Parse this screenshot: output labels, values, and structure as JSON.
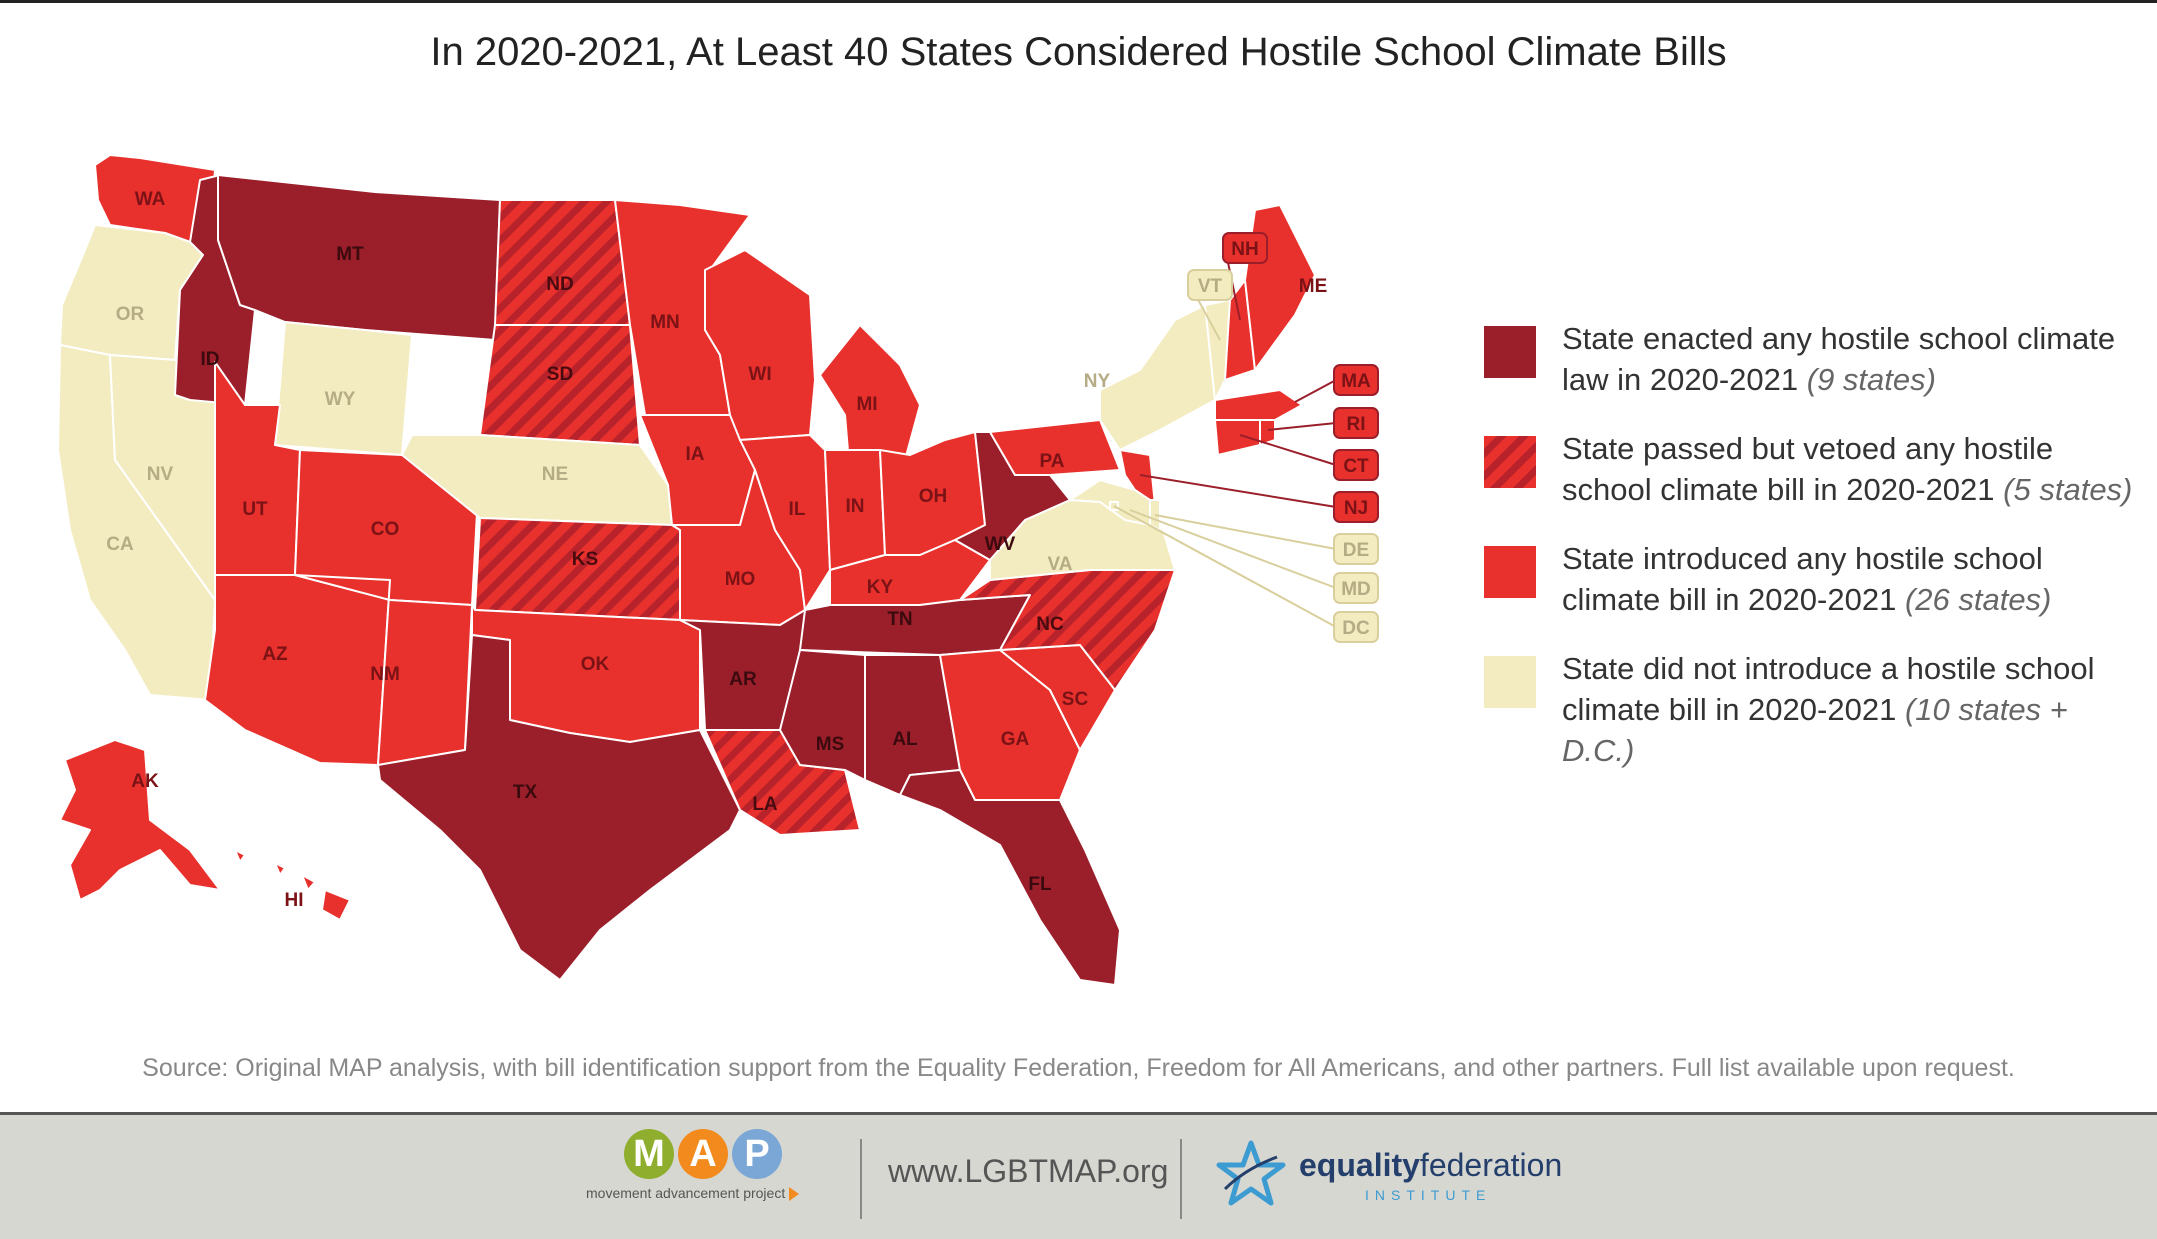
{
  "title": "In 2020-2021, At Least 40 States Considered Hostile School Climate Bills",
  "colors": {
    "enacted": "#9b1f2a",
    "vetoed": "#e8302c",
    "introduced": "#e8302c",
    "none": "#f3ecc0",
    "footer": "#d7d7d1"
  },
  "legend": [
    {
      "category": "enacted",
      "line1": "State enacted any hostile school climate",
      "line2": "law in 2020-2021",
      "count": "(9 states)"
    },
    {
      "category": "vetoed",
      "line1": "State passed but vetoed any hostile",
      "line2": "school climate bill in 2020-2021",
      "count": "(5 states)"
    },
    {
      "category": "introduced",
      "line1": "State introduced any hostile school",
      "line2": "climate bill in 2020-2021",
      "count": "(26 states)"
    },
    {
      "category": "none",
      "line1": "State did not introduce a hostile school",
      "line2": "climate bill in 2020-2021",
      "count": "(10 states + D.C.)"
    }
  ],
  "states": [
    {
      "abbr": "WA",
      "status": "introduced"
    },
    {
      "abbr": "OR",
      "status": "none"
    },
    {
      "abbr": "CA",
      "status": "none"
    },
    {
      "abbr": "NV",
      "status": "none"
    },
    {
      "abbr": "ID",
      "status": "enacted"
    },
    {
      "abbr": "MT",
      "status": "enacted"
    },
    {
      "abbr": "WY",
      "status": "none"
    },
    {
      "abbr": "UT",
      "status": "introduced"
    },
    {
      "abbr": "AZ",
      "status": "introduced"
    },
    {
      "abbr": "CO",
      "status": "introduced"
    },
    {
      "abbr": "NM",
      "status": "introduced"
    },
    {
      "abbr": "ND",
      "status": "vetoed"
    },
    {
      "abbr": "SD",
      "status": "vetoed"
    },
    {
      "abbr": "NE",
      "status": "none"
    },
    {
      "abbr": "KS",
      "status": "vetoed"
    },
    {
      "abbr": "OK",
      "status": "introduced"
    },
    {
      "abbr": "TX",
      "status": "enacted"
    },
    {
      "abbr": "MN",
      "status": "introduced"
    },
    {
      "abbr": "IA",
      "status": "introduced"
    },
    {
      "abbr": "MO",
      "status": "introduced"
    },
    {
      "abbr": "AR",
      "status": "enacted"
    },
    {
      "abbr": "LA",
      "status": "vetoed"
    },
    {
      "abbr": "WI",
      "status": "introduced"
    },
    {
      "abbr": "IL",
      "status": "introduced"
    },
    {
      "abbr": "MI",
      "status": "introduced"
    },
    {
      "abbr": "IN",
      "status": "introduced"
    },
    {
      "abbr": "OH",
      "status": "introduced"
    },
    {
      "abbr": "KY",
      "status": "introduced"
    },
    {
      "abbr": "TN",
      "status": "enacted"
    },
    {
      "abbr": "MS",
      "status": "enacted"
    },
    {
      "abbr": "AL",
      "status": "enacted"
    },
    {
      "abbr": "GA",
      "status": "introduced"
    },
    {
      "abbr": "FL",
      "status": "enacted"
    },
    {
      "abbr": "SC",
      "status": "introduced"
    },
    {
      "abbr": "NC",
      "status": "vetoed"
    },
    {
      "abbr": "VA",
      "status": "none"
    },
    {
      "abbr": "WV",
      "status": "enacted"
    },
    {
      "abbr": "PA",
      "status": "introduced"
    },
    {
      "abbr": "NY",
      "status": "none"
    },
    {
      "abbr": "VT",
      "status": "none"
    },
    {
      "abbr": "NH",
      "status": "introduced"
    },
    {
      "abbr": "ME",
      "status": "introduced"
    },
    {
      "abbr": "MA",
      "status": "introduced"
    },
    {
      "abbr": "RI",
      "status": "introduced"
    },
    {
      "abbr": "CT",
      "status": "introduced"
    },
    {
      "abbr": "NJ",
      "status": "introduced"
    },
    {
      "abbr": "DE",
      "status": "none"
    },
    {
      "abbr": "MD",
      "status": "none"
    },
    {
      "abbr": "DC",
      "status": "none"
    },
    {
      "abbr": "AK",
      "status": "introduced"
    },
    {
      "abbr": "HI",
      "status": "introduced"
    }
  ],
  "source": "Source: Original MAP analysis, with bill identification support from the Equality Federation, Freedom for All Americans, and other partners. Full list available upon request.",
  "footer": {
    "map_letters": [
      "M",
      "A",
      "P"
    ],
    "map_letter_colors": [
      "#8fae2e",
      "#f28a1e",
      "#7aa7d6"
    ],
    "map_tagline": "movement advancement project",
    "url": "www.LGBTMAP.org",
    "eq_name_bold": "equality",
    "eq_name_rest": "federation",
    "eq_institute": "INSTITUTE"
  }
}
